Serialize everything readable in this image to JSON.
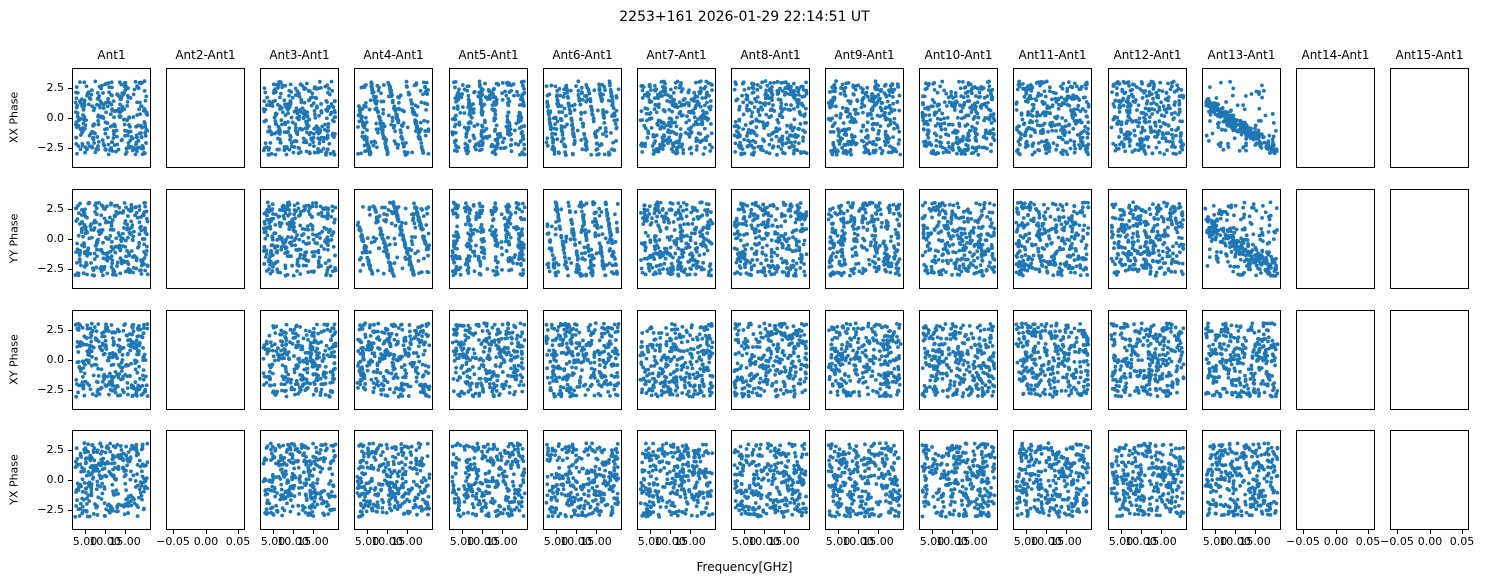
{
  "chart_data": {
    "type": "scatter",
    "title": "2253+161 2026-01-29 22:14:51 UT",
    "xlabel": "Frequency[GHz]",
    "marker_color": "#1f77b4",
    "grid": false,
    "legend": "none",
    "rows": [
      "XX Phase",
      "YY Phase",
      "XY Phase",
      "YX Phase"
    ],
    "columns": [
      "Ant1",
      "Ant2-Ant1",
      "Ant3-Ant1",
      "Ant4-Ant1",
      "Ant5-Ant1",
      "Ant6-Ant1",
      "Ant7-Ant1",
      "Ant8-Ant1",
      "Ant9-Ant1",
      "Ant10-Ant1",
      "Ant11-Ant1",
      "Ant12-Ant1",
      "Ant13-Ant1",
      "Ant14-Ant1",
      "Ant15-Ant1"
    ],
    "empty_columns": [
      1,
      13,
      14
    ],
    "points_per_panel": 300,
    "xlim_data": [
      1.7,
      21.4
    ],
    "xlim_empty": [
      -0.0605,
      0.0605
    ],
    "ylim": [
      -4.15,
      4.15
    ],
    "x_ticks_data": {
      "values": [
        5,
        10,
        15
      ],
      "labels": [
        "5.00",
        "10.00",
        "15.00"
      ]
    },
    "x_ticks_empty": {
      "values": [
        -0.05,
        0.0,
        0.05
      ],
      "labels": [
        "−0.05",
        "0.00",
        "0.05"
      ]
    },
    "y_ticks": {
      "values": [
        2.5,
        0.0,
        -2.5
      ],
      "labels": [
        "2.5",
        "0.0",
        "−2.5"
      ]
    },
    "default_pattern": "uniform",
    "special_panels": [
      {
        "row": 0,
        "col": 3,
        "pattern": "diag-stripes",
        "k": 2.1,
        "mix": 0.4
      },
      {
        "row": 0,
        "col": 4,
        "pattern": "vert-stripes",
        "stripes": 6,
        "mix": 0.35
      },
      {
        "row": 0,
        "col": 5,
        "pattern": "diag-stripes",
        "k": 3.4,
        "mix": 0.35
      },
      {
        "row": 0,
        "col": 12,
        "pattern": "diag-band",
        "noise": 0.5,
        "mix": 0.25
      },
      {
        "row": 1,
        "col": 3,
        "pattern": "diag-stripes",
        "k": 1.8,
        "mix": 0.4
      },
      {
        "row": 1,
        "col": 4,
        "pattern": "vert-stripes",
        "stripes": 6,
        "mix": 0.4
      },
      {
        "row": 1,
        "col": 5,
        "pattern": "diag-stripes",
        "k": 3.0,
        "mix": 0.35
      },
      {
        "row": 1,
        "col": 8,
        "pattern": "vert-stripes",
        "stripes": 7,
        "mix": 0.5
      },
      {
        "row": 1,
        "col": 12,
        "pattern": "diag-band",
        "noise": 0.85,
        "mix": 0.4
      }
    ]
  }
}
